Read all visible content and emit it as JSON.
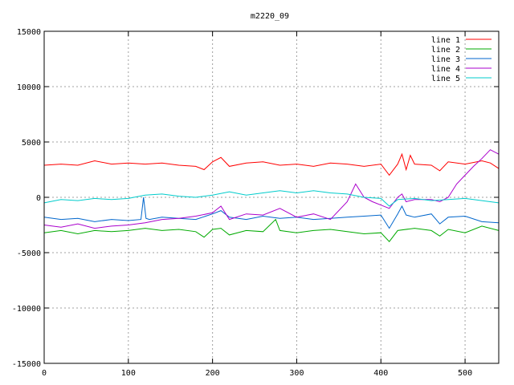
{
  "chart_data": {
    "type": "line",
    "title": "m2220_09",
    "xlabel": "",
    "ylabel": "",
    "xlim": [
      0,
      540
    ],
    "ylim": [
      -15000,
      15000
    ],
    "x_ticks": [
      "0",
      "100",
      "200",
      "300",
      "400",
      "500"
    ],
    "y_ticks": [
      "15000",
      "10000",
      "5000",
      "0",
      "-5000",
      "-10000",
      "-15000"
    ],
    "grid": true,
    "legend_position": "top-right",
    "series": [
      {
        "name": "line 1",
        "color": "#ff0000",
        "x": [
          0,
          20,
          40,
          60,
          80,
          100,
          120,
          140,
          160,
          180,
          190,
          200,
          210,
          220,
          240,
          260,
          280,
          300,
          320,
          340,
          360,
          380,
          400,
          410,
          420,
          425,
          430,
          435,
          440,
          460,
          470,
          480,
          500,
          520,
          530,
          540
        ],
        "y": [
          2900,
          3000,
          2900,
          3300,
          3000,
          3100,
          3000,
          3100,
          2900,
          2800,
          2500,
          3200,
          3600,
          2800,
          3100,
          3200,
          2900,
          3000,
          2800,
          3100,
          3000,
          2800,
          3000,
          2000,
          3000,
          3900,
          2500,
          3800,
          3000,
          2900,
          2400,
          3200,
          3000,
          3300,
          3100,
          2600
        ]
      },
      {
        "name": "line 2",
        "color": "#00aa00",
        "x": [
          0,
          20,
          40,
          60,
          80,
          100,
          120,
          140,
          160,
          180,
          190,
          200,
          210,
          220,
          240,
          260,
          275,
          280,
          300,
          320,
          340,
          360,
          380,
          400,
          410,
          420,
          440,
          460,
          470,
          480,
          500,
          520,
          540
        ],
        "y": [
          -3200,
          -3000,
          -3300,
          -3000,
          -3100,
          -3000,
          -2800,
          -3000,
          -2900,
          -3100,
          -3600,
          -2900,
          -2800,
          -3400,
          -3000,
          -3100,
          -2000,
          -3000,
          -3200,
          -3000,
          -2900,
          -3100,
          -3300,
          -3200,
          -4000,
          -3000,
          -2800,
          -3000,
          -3500,
          -2900,
          -3200,
          -2600,
          -3000
        ]
      },
      {
        "name": "line 3",
        "color": "#0066cc",
        "x": [
          0,
          20,
          40,
          60,
          80,
          100,
          115,
          118,
          121,
          125,
          140,
          160,
          180,
          200,
          210,
          220,
          240,
          260,
          280,
          300,
          320,
          340,
          360,
          380,
          400,
          410,
          420,
          425,
          430,
          440,
          460,
          470,
          480,
          500,
          520,
          540
        ],
        "y": [
          -1800,
          -2000,
          -1900,
          -2200,
          -2000,
          -2100,
          -2000,
          0,
          -1900,
          -2000,
          -1800,
          -1900,
          -2000,
          -1500,
          -1200,
          -1800,
          -2000,
          -1700,
          -1900,
          -1800,
          -2000,
          -1900,
          -1800,
          -1700,
          -1600,
          -2800,
          -1500,
          -800,
          -1600,
          -1800,
          -1500,
          -2400,
          -1800,
          -1700,
          -2200,
          -2300
        ]
      },
      {
        "name": "line 4",
        "color": "#aa00cc",
        "x": [
          0,
          20,
          40,
          60,
          80,
          100,
          120,
          140,
          160,
          180,
          200,
          210,
          220,
          240,
          260,
          280,
          300,
          320,
          340,
          360,
          370,
          380,
          390,
          400,
          410,
          420,
          425,
          430,
          440,
          460,
          470,
          480,
          490,
          500,
          510,
          520,
          530,
          540
        ],
        "y": [
          -2500,
          -2700,
          -2400,
          -2800,
          -2600,
          -2500,
          -2300,
          -2000,
          -1900,
          -1700,
          -1400,
          -800,
          -2000,
          -1500,
          -1600,
          -1000,
          -1800,
          -1500,
          -2000,
          -400,
          1200,
          0,
          -400,
          -700,
          -1000,
          0,
          300,
          -400,
          -200,
          -200,
          -400,
          0,
          1200,
          2000,
          2800,
          3500,
          4300,
          3900
        ]
      },
      {
        "name": "line 5",
        "color": "#00cccc",
        "x": [
          0,
          20,
          40,
          60,
          80,
          100,
          120,
          140,
          160,
          180,
          200,
          220,
          240,
          260,
          280,
          300,
          320,
          340,
          360,
          380,
          400,
          410,
          420,
          440,
          460,
          480,
          500,
          520,
          540
        ],
        "y": [
          -500,
          -200,
          -300,
          -100,
          -200,
          -100,
          200,
          300,
          100,
          0,
          200,
          500,
          200,
          400,
          600,
          400,
          600,
          400,
          300,
          0,
          -100,
          -800,
          -200,
          -100,
          -300,
          -200,
          -100,
          -300,
          -500
        ]
      }
    ]
  }
}
